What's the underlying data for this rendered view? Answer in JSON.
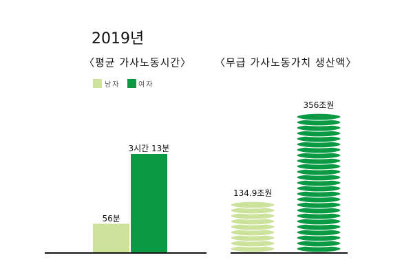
{
  "title": "2019년",
  "colors": {
    "male": "#cde29a",
    "female": "#0a9a44",
    "axis": "#111111"
  },
  "chart_data": [
    {
      "type": "bar",
      "title": "〈평균 가사노동시간〉",
      "categories": [
        "남자",
        "여자"
      ],
      "legend": [
        "남자",
        "여자"
      ],
      "legend_position": "top-left",
      "values_minutes": [
        56,
        193
      ],
      "data_labels": [
        "56분",
        "3시간 13분"
      ],
      "grid": false
    },
    {
      "type": "bar",
      "style": "coin-stack",
      "title": "〈무급 가사노동가치 생산액〉",
      "categories": [
        "남자",
        "여자"
      ],
      "values": [
        134.9,
        356
      ],
      "unit": "조원",
      "data_labels": [
        "134.9조원",
        "356조원"
      ],
      "grid": false
    }
  ]
}
